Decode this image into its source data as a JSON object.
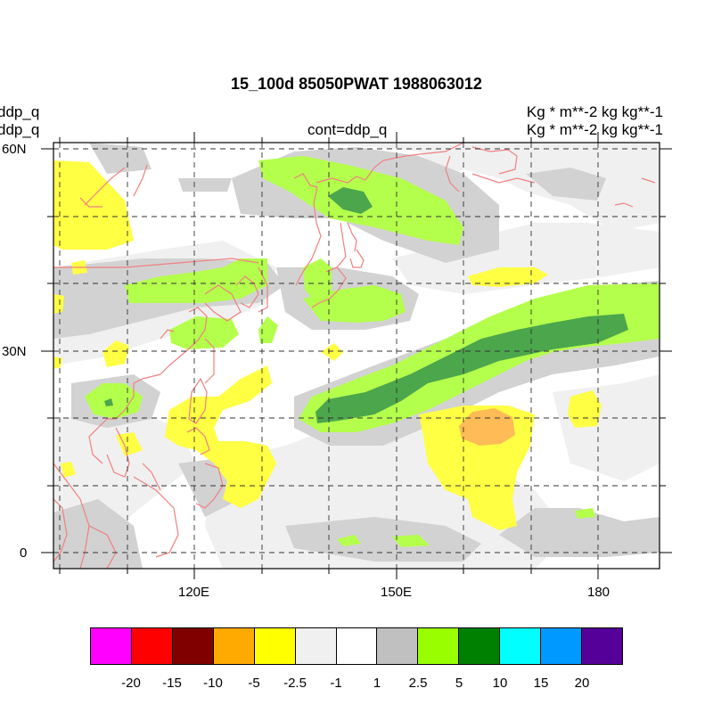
{
  "title": "15_100d 85050PWAT  1988063012",
  "left_labels": [
    "ddp_q",
    "ddp_q"
  ],
  "center_label": "cont=ddp_q",
  "right_labels": [
    "Kg  * m**-2 kg kg**-1",
    "Kg  * m**-2 kg kg**-1"
  ],
  "map": {
    "lat_labels": [
      "60N",
      "30N",
      "0"
    ],
    "lon_labels": [
      "120E",
      "150E",
      "180"
    ],
    "coastline_color": "#f08080",
    "grid": "dashed"
  },
  "legend": {
    "colors": [
      "#ff00ff",
      "#ff0000",
      "#800000",
      "#ffaa00",
      "#ffff00",
      "#f0f0f0",
      "#ffffff",
      "#c0c0c0",
      "#99ff00",
      "#008000",
      "#00ffff",
      "#0099ff",
      "#550099"
    ],
    "labels": [
      "-20",
      "-15",
      "-10",
      "-5",
      "-2.5",
      "-1",
      "1",
      "2.5",
      "5",
      "10",
      "15",
      "20"
    ]
  },
  "fill_colors": {
    "light_gray": "#f0f0f0",
    "gray": "#d2d2d2",
    "yellow": "#ffff44",
    "light_green": "#b4ff4c",
    "dark_green": "#4ca64c",
    "orange": "#ffbb55"
  }
}
